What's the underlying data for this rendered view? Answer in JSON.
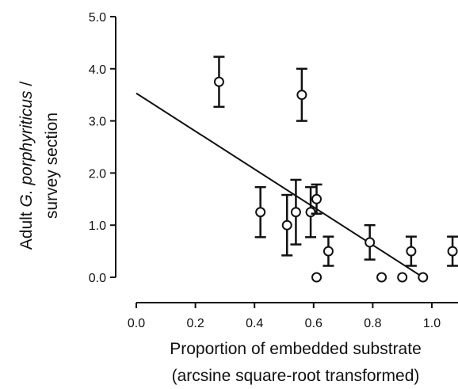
{
  "chart_data": {
    "type": "scatter",
    "xlabel_line1": "Proportion of embedded substrate",
    "xlabel_line2": "(arcsine square-root transformed)",
    "ylabel_prefix": "Adult ",
    "ylabel_species": "G. porphyriticus",
    "ylabel_suffix": " /",
    "ylabel_line2": "survey section",
    "xlim": [
      0.0,
      1.1
    ],
    "ylim": [
      0.0,
      5.0
    ],
    "x_ticks": [
      0.0,
      0.2,
      0.4,
      0.6,
      0.8,
      1.0
    ],
    "x_tick_labels": [
      "0.0",
      "0.2",
      "0.4",
      "0.6",
      "0.8",
      "1.0"
    ],
    "y_ticks": [
      0.0,
      1.0,
      2.0,
      3.0,
      4.0,
      5.0
    ],
    "y_tick_labels": [
      "0.0",
      "1.0",
      "2.0",
      "3.0",
      "4.0",
      "5.0"
    ],
    "grid": false,
    "series": [
      {
        "points": [
          {
            "x": 0.28,
            "y": 3.75,
            "err": 0.48
          },
          {
            "x": 0.56,
            "y": 3.5,
            "err": 0.5
          },
          {
            "x": 0.42,
            "y": 1.25,
            "err": 0.48
          },
          {
            "x": 0.51,
            "y": 1.0,
            "err": 0.58
          },
          {
            "x": 0.54,
            "y": 1.25,
            "err": 0.62
          },
          {
            "x": 0.59,
            "y": 1.25,
            "err": 0.48
          },
          {
            "x": 0.61,
            "y": 1.5,
            "err": 0.28
          },
          {
            "x": 0.61,
            "y": 0.0,
            "err": 0
          },
          {
            "x": 0.65,
            "y": 0.5,
            "err": 0.28
          },
          {
            "x": 0.79,
            "y": 0.67,
            "err": 0.33
          },
          {
            "x": 0.83,
            "y": 0.0,
            "err": 0
          },
          {
            "x": 0.9,
            "y": 0.0,
            "err": 0
          },
          {
            "x": 0.93,
            "y": 0.5,
            "err": 0.28
          },
          {
            "x": 0.97,
            "y": 0.0,
            "err": 0
          },
          {
            "x": 1.07,
            "y": 0.5,
            "err": 0.28
          }
        ]
      }
    ],
    "trendline": {
      "x_start": 0.0,
      "y_start": 3.53,
      "x_end": 0.97,
      "y_end": 0.0
    },
    "colors": {
      "ink": "#111111",
      "marker_fill": "#ffffff"
    }
  }
}
